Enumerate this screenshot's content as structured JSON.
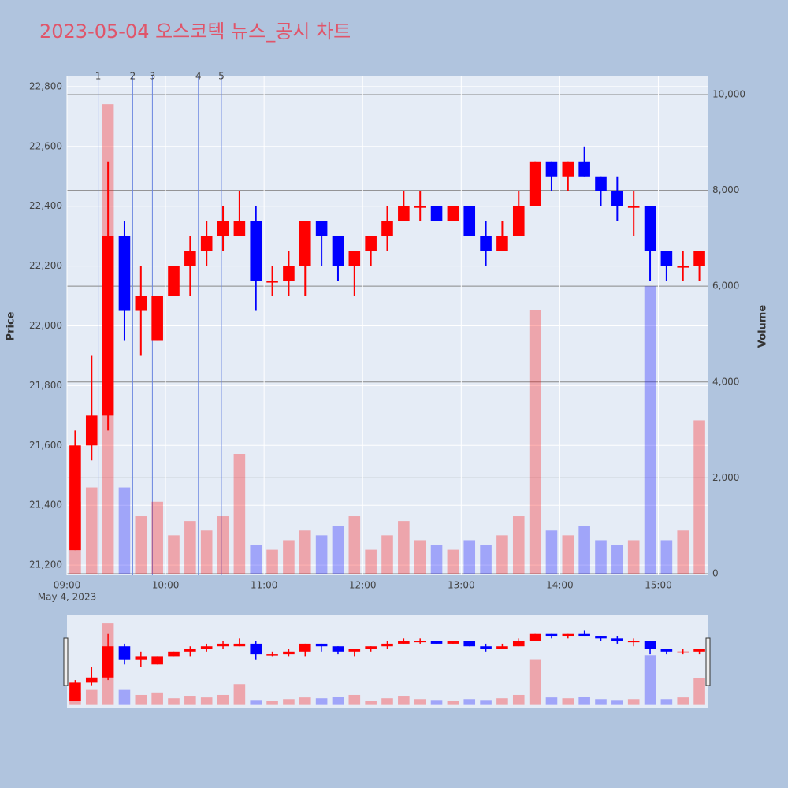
{
  "chart_data": {
    "type": "candlestick",
    "title": "2023-05-04 오스코텍 뉴스_공시 차트",
    "x": [
      "09:00",
      "09:10",
      "09:20",
      "09:30",
      "09:40",
      "09:50",
      "10:00",
      "10:10",
      "10:20",
      "10:30",
      "10:40",
      "10:50",
      "11:00",
      "11:10",
      "11:20",
      "11:30",
      "11:40",
      "11:50",
      "12:00",
      "12:10",
      "12:20",
      "12:30",
      "12:40",
      "12:50",
      "13:00",
      "13:10",
      "13:20",
      "13:30",
      "13:40",
      "13:50",
      "14:00",
      "14:10",
      "14:20",
      "14:30",
      "14:40",
      "14:50",
      "15:00",
      "15:10",
      "15:20"
    ],
    "open": [
      21250,
      21600,
      21700,
      22300,
      22050,
      21950,
      22100,
      22200,
      22250,
      22300,
      22300,
      22350,
      22150,
      22150,
      22200,
      22350,
      22300,
      22200,
      22250,
      22300,
      22350,
      22400,
      22400,
      22350,
      22400,
      22300,
      22250,
      22300,
      22400,
      22550,
      22500,
      22550,
      22500,
      22450,
      22400,
      22400,
      22250,
      22200,
      22200
    ],
    "high": [
      21650,
      21900,
      22550,
      22350,
      22200,
      22100,
      22200,
      22300,
      22350,
      22400,
      22450,
      22400,
      22200,
      22250,
      22350,
      22350,
      22300,
      22250,
      22300,
      22400,
      22450,
      22450,
      22400,
      22400,
      22400,
      22350,
      22350,
      22450,
      22550,
      22550,
      22550,
      22600,
      22500,
      22500,
      22450,
      22400,
      22250,
      22250,
      22250
    ],
    "low": [
      21250,
      21550,
      21650,
      21950,
      21900,
      21950,
      22100,
      22100,
      22200,
      22250,
      22300,
      22050,
      22100,
      22100,
      22100,
      22200,
      22150,
      22100,
      22200,
      22250,
      22350,
      22350,
      22350,
      22350,
      22300,
      22200,
      22250,
      22300,
      22400,
      22450,
      22450,
      22500,
      22400,
      22350,
      22300,
      22150,
      22150,
      22150,
      22150
    ],
    "close": [
      21600,
      21700,
      22300,
      22050,
      22100,
      22100,
      22200,
      22250,
      22300,
      22350,
      22350,
      22150,
      22150,
      22200,
      22350,
      22300,
      22200,
      22250,
      22300,
      22350,
      22400,
      22400,
      22350,
      22400,
      22300,
      22250,
      22300,
      22400,
      22550,
      22500,
      22550,
      22500,
      22450,
      22400,
      22400,
      22250,
      22200,
      22200,
      22250
    ],
    "volume": [
      1500,
      1800,
      9800,
      1800,
      1200,
      1500,
      800,
      1100,
      900,
      1200,
      2500,
      600,
      500,
      700,
      900,
      800,
      1000,
      1200,
      500,
      800,
      1100,
      700,
      600,
      500,
      700,
      600,
      800,
      1200,
      5500,
      900,
      800,
      1000,
      700,
      600,
      700,
      6000,
      700,
      900,
      3200
    ],
    "up_color": "#ff0000",
    "down_color": "#0000ff",
    "xlim": [
      "09:00",
      "15:30"
    ],
    "xticks": [
      "09:00",
      "10:00",
      "11:00",
      "12:00",
      "13:00",
      "14:00",
      "15:00"
    ],
    "x_date_label": "May 4, 2023",
    "ylim": [
      21166,
      22834
    ],
    "yticks": [
      {
        "value": 21200,
        "label": "21,200"
      },
      {
        "value": 21400,
        "label": "21,400"
      },
      {
        "value": 21600,
        "label": "21,600"
      },
      {
        "value": 21800,
        "label": "21,800"
      },
      {
        "value": 22000,
        "label": "22,000"
      },
      {
        "value": 22200,
        "label": "22,200"
      },
      {
        "value": 22400,
        "label": "22,400"
      },
      {
        "value": 22600,
        "label": "22,600"
      },
      {
        "value": 22800,
        "label": "22,800"
      }
    ],
    "y2lim": [
      -33,
      10378
    ],
    "y2ticks": [
      0,
      {
        "value": 2000,
        "label": "2,000"
      },
      {
        "value": 4000,
        "label": "4,000"
      },
      {
        "value": 6000,
        "label": "6,000"
      },
      {
        "value": 8000,
        "label": "8,000"
      },
      {
        "value": 10000,
        "label": "10,000"
      }
    ],
    "ylabel": "Price",
    "y2label": "Volume",
    "annotations": [
      {
        "x": "09:19",
        "text": "1"
      },
      {
        "x": "09:40",
        "text": "2"
      },
      {
        "x": "09:52",
        "text": "3"
      },
      {
        "x": "10:20",
        "text": "4"
      },
      {
        "x": "10:34",
        "text": "5"
      }
    ]
  }
}
